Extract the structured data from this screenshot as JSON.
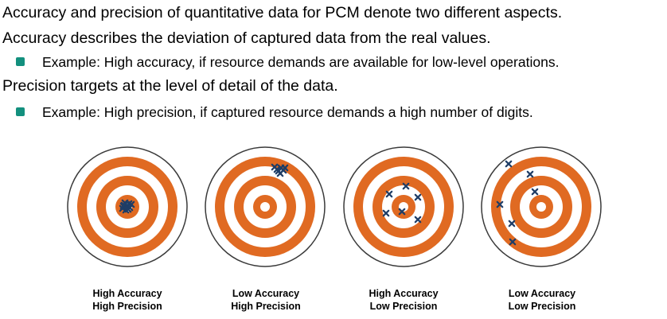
{
  "text": {
    "line1": "Accuracy and precision of quantitative data for PCM denote two different aspects.",
    "line2": "Accuracy describes the deviation of captured data from the real values.",
    "bullet1": "Example: High accuracy, if resource demands are available for low-level operations.",
    "line3": "Precision targets at the level of detail of the data.",
    "bullet2": "Example: High precision, if captured resource demands a high number of digits."
  },
  "colors": {
    "ring_orange": "#e06a22",
    "ring_white": "#ffffff",
    "outline": "#3a3a3a",
    "marker": "#1f3d66",
    "bullet": "#13907e"
  },
  "targets": [
    {
      "caption_top": "High Accuracy",
      "caption_bottom": "High Precision"
    },
    {
      "caption_top": "Low Accuracy",
      "caption_bottom": "High Precision"
    },
    {
      "caption_top": "High Accuracy",
      "caption_bottom": "Low Precision"
    },
    {
      "caption_top": "Low Accuracy",
      "caption_bottom": "Low Precision"
    }
  ]
}
